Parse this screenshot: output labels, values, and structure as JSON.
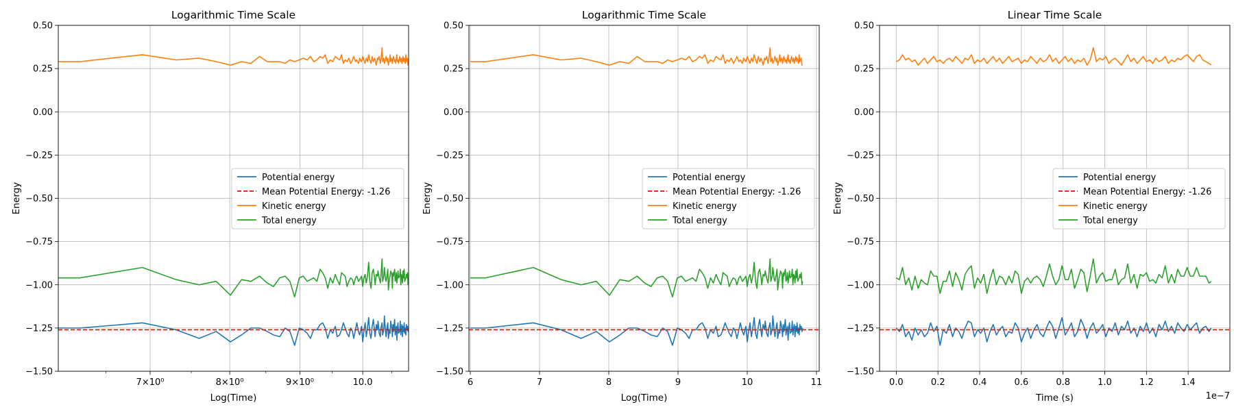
{
  "chart_data": [
    {
      "type": "line",
      "title": "Logarithmic Time Scale",
      "xlabel": "Log(Time)",
      "ylabel": "Energy",
      "xscale": "log",
      "xlim": [
        6.0,
        10.8
      ],
      "ylim": [
        -1.5,
        0.5
      ],
      "grid": "on",
      "legend_position": "center-right",
      "xticks": [
        {
          "value": 7,
          "label": "7×10⁰"
        },
        {
          "value": 8,
          "label": "8×10⁰"
        },
        {
          "value": 9,
          "label": "9×10⁰"
        },
        {
          "value": 10,
          "label": "10.0"
        }
      ],
      "yticks": [
        "0.50",
        "0.25",
        "0.00",
        "−0.25",
        "−0.50",
        "−0.75",
        "−1.00",
        "−1.25",
        "−1.50"
      ],
      "hline": {
        "name": "Mean Potential Energy: -1.26",
        "y": -1.26,
        "color": "#ff0000",
        "style": "dashed"
      },
      "legend": [
        "Potential energy",
        "Mean Potential Energy: -1.26",
        "Kinetic energy",
        "Total energy"
      ]
    },
    {
      "type": "line",
      "title": "Logarithmic Time Scale",
      "xlabel": "Log(Time)",
      "ylabel": "Energy",
      "xscale": "linear",
      "xlim": [
        5.98,
        11.04
      ],
      "ylim": [
        -1.5,
        0.5
      ],
      "grid": "on",
      "legend_position": "center-right",
      "xticks": [
        {
          "value": 6,
          "label": "6"
        },
        {
          "value": 7,
          "label": "7"
        },
        {
          "value": 8,
          "label": "8"
        },
        {
          "value": 9,
          "label": "9"
        },
        {
          "value": 10,
          "label": "10"
        },
        {
          "value": 11,
          "label": "11"
        }
      ],
      "yticks": [
        "0.50",
        "0.25",
        "0.00",
        "−0.25",
        "−0.50",
        "−0.75",
        "−1.00",
        "−1.25",
        "−1.50"
      ],
      "hline": {
        "name": "Mean Potential Energy: -1.26",
        "y": -1.26,
        "color": "#ff0000",
        "style": "dashed"
      },
      "legend": [
        "Potential energy",
        "Mean Potential Energy: -1.26",
        "Kinetic energy",
        "Total energy"
      ]
    },
    {
      "type": "line",
      "title": "Linear Time Scale",
      "xlabel": "Time (s)",
      "ylabel": "Energy",
      "xscale": "linear",
      "xlim": [
        -0.08,
        1.6
      ],
      "ylim": [
        -1.5,
        0.5
      ],
      "grid": "on",
      "legend_position": "center-right",
      "offset_label": "1e−7",
      "xticks": [
        {
          "value": 0.0,
          "label": "0.0"
        },
        {
          "value": 0.2,
          "label": "0.2"
        },
        {
          "value": 0.4,
          "label": "0.4"
        },
        {
          "value": 0.6,
          "label": "0.6"
        },
        {
          "value": 0.8,
          "label": "0.8"
        },
        {
          "value": 1.0,
          "label": "1.0"
        },
        {
          "value": 1.2,
          "label": "1.2"
        },
        {
          "value": 1.4,
          "label": "1.4"
        }
      ],
      "yticks": [
        "0.50",
        "0.25",
        "0.00",
        "−0.25",
        "−0.50",
        "−0.75",
        "−1.00",
        "−1.25",
        "−1.50"
      ],
      "hline": {
        "name": "Mean Potential Energy: -1.26",
        "y": -1.26,
        "color": "#ff0000",
        "style": "dashed"
      },
      "legend": [
        "Potential energy",
        "Mean Potential Energy: -1.26",
        "Kinetic energy",
        "Total energy"
      ]
    }
  ],
  "series_meta": [
    {
      "name": "Potential energy",
      "color": "#1f77b4"
    },
    {
      "name": "Kinetic energy",
      "color": "#ff7f0e"
    },
    {
      "name": "Total energy",
      "color": "#2ca02c"
    }
  ],
  "series_data": {
    "log_time": [
      6.0,
      6.22,
      6.91,
      7.31,
      7.6,
      7.82,
      8.01,
      8.16,
      8.29,
      8.41,
      8.52,
      8.61,
      8.7,
      8.78,
      8.85,
      8.92,
      8.99,
      9.05,
      9.11,
      9.16,
      9.21,
      9.26,
      9.31,
      9.35,
      9.39,
      9.43,
      9.47,
      9.51,
      9.55,
      9.58,
      9.62,
      9.65,
      9.68,
      9.71,
      9.74,
      9.77,
      9.8,
      9.83,
      9.85,
      9.88,
      9.9,
      9.93,
      9.95,
      9.98,
      10.0,
      10.02,
      10.04,
      10.06,
      10.08,
      10.1,
      10.12,
      10.14,
      10.16,
      10.18,
      10.2,
      10.21,
      10.23,
      10.25,
      10.26,
      10.28,
      10.3,
      10.31,
      10.33,
      10.34,
      10.36,
      10.37,
      10.39,
      10.4,
      10.42,
      10.43,
      10.44,
      10.46,
      10.47,
      10.48,
      10.5,
      10.51,
      10.52,
      10.53,
      10.55,
      10.56,
      10.57,
      10.58,
      10.59,
      10.6,
      10.61,
      10.62,
      10.64,
      10.65,
      10.66,
      10.67,
      10.68,
      10.69,
      10.7,
      10.71,
      10.72,
      10.73,
      10.74,
      10.75,
      10.76,
      10.77,
      10.78,
      10.79,
      10.8
    ],
    "potential_log": [
      -1.25,
      -1.25,
      -1.22,
      -1.26,
      -1.31,
      -1.27,
      -1.33,
      -1.29,
      -1.25,
      -1.25,
      -1.27,
      -1.29,
      -1.3,
      -1.25,
      -1.27,
      -1.35,
      -1.25,
      -1.26,
      -1.28,
      -1.31,
      -1.26,
      -1.26,
      -1.23,
      -1.22,
      -1.25,
      -1.31,
      -1.26,
      -1.28,
      -1.24,
      -1.3,
      -1.29,
      -1.26,
      -1.22,
      -1.25,
      -1.28,
      -1.3,
      -1.25,
      -1.27,
      -1.31,
      -1.26,
      -1.22,
      -1.27,
      -1.29,
      -1.24,
      -1.33,
      -1.27,
      -1.22,
      -1.3,
      -1.25,
      -1.19,
      -1.28,
      -1.31,
      -1.24,
      -1.2,
      -1.27,
      -1.3,
      -1.23,
      -1.26,
      -1.21,
      -1.28,
      -1.3,
      -1.25,
      -1.22,
      -1.29,
      -1.26,
      -1.18,
      -1.27,
      -1.3,
      -1.24,
      -1.22,
      -1.31,
      -1.26,
      -1.28,
      -1.21,
      -1.25,
      -1.3,
      -1.23,
      -1.27,
      -1.2,
      -1.29,
      -1.26,
      -1.24,
      -1.32,
      -1.25,
      -1.22,
      -1.28,
      -1.27,
      -1.21,
      -1.29,
      -1.25,
      -1.23,
      -1.3,
      -1.24,
      -1.27,
      -1.22,
      -1.28,
      -1.25,
      -1.29,
      -1.23,
      -1.26,
      -1.24,
      -1.27,
      -1.25
    ],
    "kinetic_log": [
      0.29,
      0.29,
      0.33,
      0.3,
      0.31,
      0.29,
      0.27,
      0.29,
      0.28,
      0.32,
      0.29,
      0.29,
      0.29,
      0.28,
      0.3,
      0.29,
      0.3,
      0.31,
      0.3,
      0.32,
      0.29,
      0.3,
      0.32,
      0.31,
      0.33,
      0.28,
      0.3,
      0.29,
      0.32,
      0.31,
      0.3,
      0.33,
      0.28,
      0.3,
      0.29,
      0.31,
      0.28,
      0.3,
      0.32,
      0.29,
      0.3,
      0.28,
      0.31,
      0.29,
      0.32,
      0.3,
      0.28,
      0.31,
      0.29,
      0.33,
      0.3,
      0.28,
      0.32,
      0.29,
      0.31,
      0.3,
      0.27,
      0.31,
      0.3,
      0.32,
      0.28,
      0.3,
      0.37,
      0.29,
      0.31,
      0.28,
      0.3,
      0.32,
      0.29,
      0.31,
      0.27,
      0.3,
      0.33,
      0.29,
      0.31,
      0.28,
      0.3,
      0.32,
      0.29,
      0.3,
      0.28,
      0.31,
      0.33,
      0.29,
      0.3,
      0.28,
      0.32,
      0.3,
      0.29,
      0.31,
      0.28,
      0.3,
      0.32,
      0.29,
      0.31,
      0.3,
      0.28,
      0.33,
      0.29,
      0.3,
      0.31,
      0.27,
      0.27
    ],
    "total_log": [
      -0.96,
      -0.96,
      -0.9,
      -0.97,
      -1.0,
      -0.98,
      -1.06,
      -0.97,
      -0.98,
      -0.95,
      -0.99,
      -1.01,
      -0.96,
      -0.95,
      -0.98,
      -1.07,
      -0.96,
      -0.95,
      -0.98,
      -0.97,
      -0.96,
      -0.98,
      -0.91,
      -0.93,
      -0.96,
      -1.02,
      -0.96,
      -0.99,
      -0.94,
      -0.97,
      -1.0,
      -0.93,
      -0.94,
      -0.95,
      -1.01,
      -0.98,
      -0.96,
      -0.97,
      -1.0,
      -0.96,
      -0.95,
      -0.98,
      -0.97,
      -0.95,
      -1.01,
      -0.96,
      -0.94,
      -0.99,
      -0.95,
      -0.87,
      -0.98,
      -1.02,
      -0.93,
      -0.91,
      -0.96,
      -1.0,
      -0.94,
      -0.95,
      -0.92,
      -0.96,
      -0.99,
      -0.95,
      -0.85,
      -0.98,
      -0.95,
      -0.9,
      -0.97,
      -0.98,
      -0.94,
      -0.91,
      -1.03,
      -0.96,
      -0.95,
      -0.92,
      -0.94,
      -1.02,
      -0.93,
      -0.95,
      -0.91,
      -0.98,
      -0.97,
      -0.93,
      -0.99,
      -0.96,
      -0.92,
      -0.96,
      -0.95,
      -0.91,
      -1.0,
      -0.94,
      -0.95,
      -0.99,
      -0.92,
      -0.96,
      -0.91,
      -0.98,
      -0.97,
      -0.96,
      -0.94,
      -0.96,
      -0.93,
      -1.0,
      -0.98
    ],
    "time_linear": [
      0.0,
      0.015,
      0.03,
      0.045,
      0.06,
      0.075,
      0.09,
      0.105,
      0.12,
      0.135,
      0.15,
      0.165,
      0.18,
      0.195,
      0.21,
      0.225,
      0.24,
      0.255,
      0.27,
      0.285,
      0.3,
      0.315,
      0.33,
      0.345,
      0.36,
      0.375,
      0.39,
      0.405,
      0.42,
      0.435,
      0.45,
      0.465,
      0.48,
      0.495,
      0.51,
      0.525,
      0.54,
      0.555,
      0.57,
      0.585,
      0.6,
      0.615,
      0.63,
      0.645,
      0.66,
      0.675,
      0.69,
      0.705,
      0.72,
      0.735,
      0.75,
      0.765,
      0.78,
      0.795,
      0.81,
      0.825,
      0.84,
      0.855,
      0.87,
      0.885,
      0.9,
      0.915,
      0.93,
      0.945,
      0.96,
      0.975,
      0.99,
      1.005,
      1.02,
      1.035,
      1.05,
      1.065,
      1.08,
      1.095,
      1.11,
      1.125,
      1.14,
      1.155,
      1.17,
      1.185,
      1.2,
      1.215,
      1.23,
      1.245,
      1.26,
      1.275,
      1.29,
      1.305,
      1.32,
      1.335,
      1.35,
      1.365,
      1.38,
      1.395,
      1.41,
      1.425,
      1.44,
      1.455,
      1.47,
      1.485,
      1.5,
      1.51
    ],
    "potential_linear": [
      -1.25,
      -1.27,
      -1.23,
      -1.3,
      -1.27,
      -1.32,
      -1.25,
      -1.29,
      -1.26,
      -1.3,
      -1.28,
      -1.22,
      -1.27,
      -1.24,
      -1.35,
      -1.26,
      -1.28,
      -1.23,
      -1.3,
      -1.25,
      -1.27,
      -1.31,
      -1.25,
      -1.21,
      -1.22,
      -1.3,
      -1.26,
      -1.28,
      -1.25,
      -1.33,
      -1.27,
      -1.23,
      -1.29,
      -1.26,
      -1.24,
      -1.3,
      -1.27,
      -1.28,
      -1.22,
      -1.25,
      -1.33,
      -1.28,
      -1.25,
      -1.31,
      -1.26,
      -1.23,
      -1.28,
      -1.3,
      -1.25,
      -1.21,
      -1.24,
      -1.31,
      -1.25,
      -1.19,
      -1.29,
      -1.26,
      -1.22,
      -1.3,
      -1.27,
      -1.2,
      -1.24,
      -1.31,
      -1.25,
      -1.22,
      -1.28,
      -1.26,
      -1.23,
      -1.3,
      -1.25,
      -1.27,
      -1.22,
      -1.29,
      -1.24,
      -1.26,
      -1.21,
      -1.28,
      -1.25,
      -1.3,
      -1.24,
      -1.27,
      -1.22,
      -1.28,
      -1.25,
      -1.3,
      -1.23,
      -1.26,
      -1.21,
      -1.27,
      -1.24,
      -1.28,
      -1.22,
      -1.25,
      -1.27,
      -1.23,
      -1.26,
      -1.24,
      -1.22,
      -1.28,
      -1.25,
      -1.24,
      -1.27,
      -1.25
    ],
    "kinetic_linear": [
      0.29,
      0.3,
      0.33,
      0.3,
      0.31,
      0.29,
      0.3,
      0.27,
      0.29,
      0.31,
      0.28,
      0.3,
      0.32,
      0.29,
      0.3,
      0.28,
      0.3,
      0.31,
      0.29,
      0.32,
      0.3,
      0.28,
      0.31,
      0.3,
      0.33,
      0.28,
      0.3,
      0.29,
      0.31,
      0.28,
      0.3,
      0.32,
      0.29,
      0.31,
      0.28,
      0.3,
      0.32,
      0.29,
      0.3,
      0.31,
      0.28,
      0.3,
      0.29,
      0.32,
      0.3,
      0.28,
      0.31,
      0.29,
      0.3,
      0.33,
      0.29,
      0.31,
      0.28,
      0.3,
      0.32,
      0.29,
      0.31,
      0.28,
      0.3,
      0.29,
      0.31,
      0.27,
      0.3,
      0.37,
      0.29,
      0.31,
      0.3,
      0.32,
      0.28,
      0.3,
      0.31,
      0.29,
      0.27,
      0.3,
      0.33,
      0.29,
      0.31,
      0.28,
      0.3,
      0.32,
      0.29,
      0.3,
      0.28,
      0.31,
      0.29,
      0.3,
      0.32,
      0.28,
      0.3,
      0.29,
      0.31,
      0.3,
      0.32,
      0.33,
      0.31,
      0.29,
      0.32,
      0.33,
      0.3,
      0.29,
      0.28,
      0.27
    ]
  }
}
